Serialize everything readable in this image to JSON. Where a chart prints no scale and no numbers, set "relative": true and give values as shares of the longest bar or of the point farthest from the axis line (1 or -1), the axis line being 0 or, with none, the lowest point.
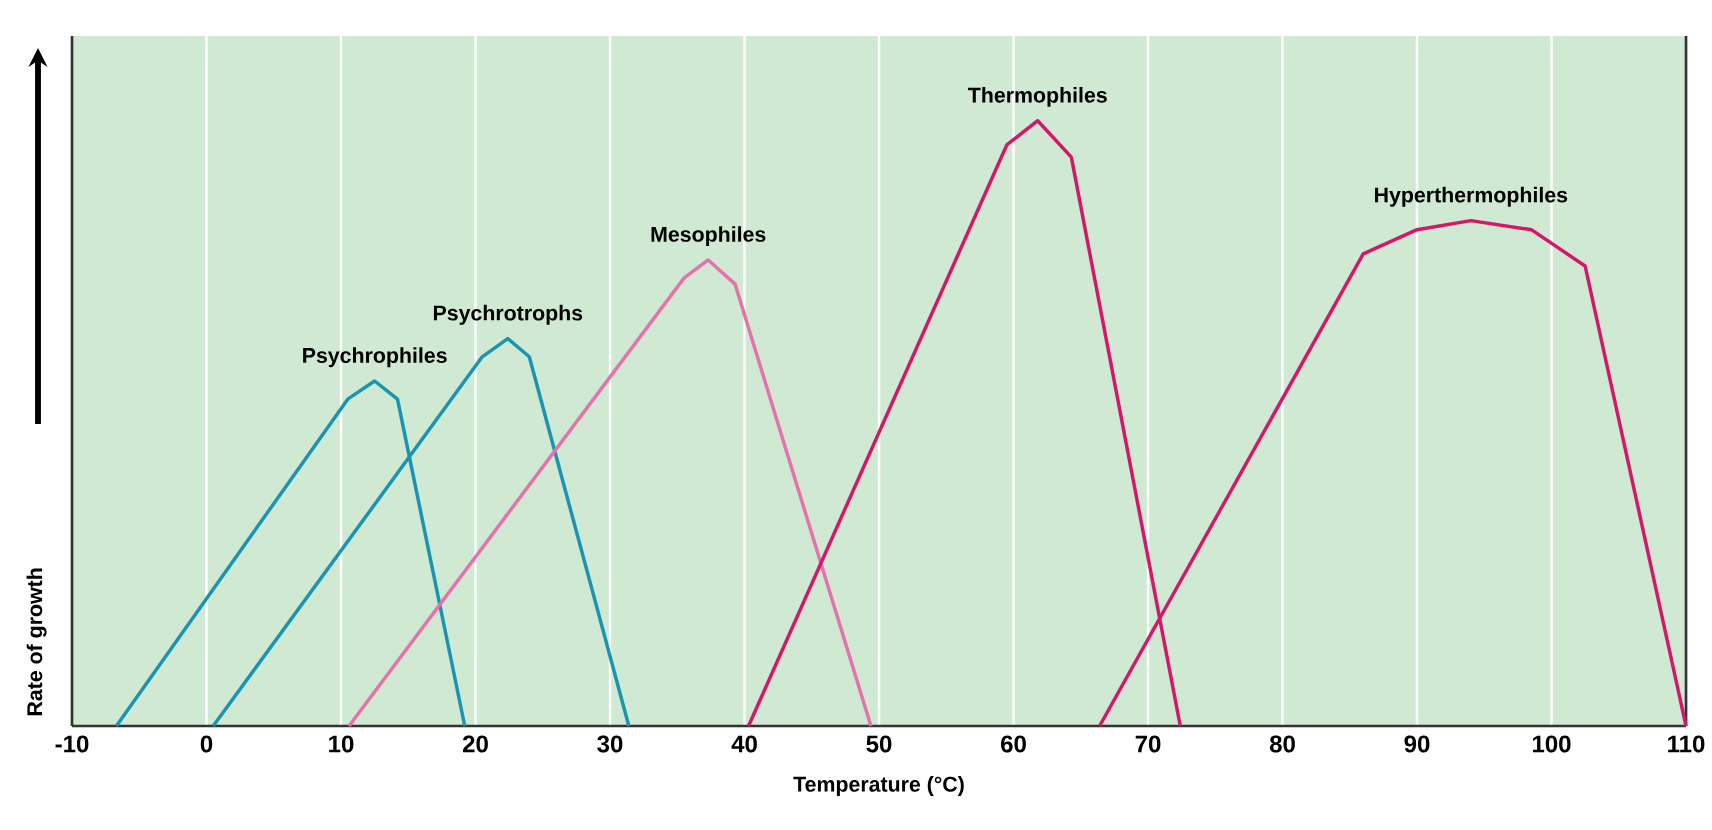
{
  "chart_data": {
    "type": "line",
    "relative": true,
    "xlabel": "Temperature (°C)",
    "ylabel": "Rate of growth",
    "xlim": [
      -10,
      110
    ],
    "xticks": [
      -10,
      0,
      10,
      20,
      30,
      40,
      50,
      60,
      70,
      80,
      90,
      100,
      110
    ],
    "grid": "x",
    "marker": "none",
    "line_style": "solid",
    "series": [
      {
        "name": "Psychrophiles",
        "color": "#1a94b0",
        "x": [
          -6.7,
          10.5,
          12.5,
          14.2,
          19.2
        ],
        "values": [
          0,
          0.54,
          0.57,
          0.54,
          0
        ]
      },
      {
        "name": "Psychrotrophs",
        "color": "#1a94b0",
        "x": [
          0.5,
          20.5,
          22.4,
          24.0,
          31.4
        ],
        "values": [
          0,
          0.61,
          0.64,
          0.61,
          0
        ]
      },
      {
        "name": "Mesophiles",
        "color": "#e672ad",
        "x": [
          10.6,
          35.5,
          37.3,
          39.3,
          49.4
        ],
        "values": [
          0,
          0.74,
          0.77,
          0.73,
          0
        ]
      },
      {
        "name": "Thermophiles",
        "color": "#d4176b",
        "x": [
          40.3,
          59.5,
          61.8,
          64.3,
          72.4
        ],
        "values": [
          0,
          0.96,
          1.0,
          0.94,
          0
        ]
      },
      {
        "name": "Hyperthermophiles",
        "color": "#d4176b",
        "x": [
          66.4,
          86.0,
          90.0,
          94.0,
          98.5,
          102.5,
          110.0
        ],
        "values": [
          0,
          0.78,
          0.82,
          0.835,
          0.82,
          0.76,
          0
        ]
      }
    ]
  }
}
